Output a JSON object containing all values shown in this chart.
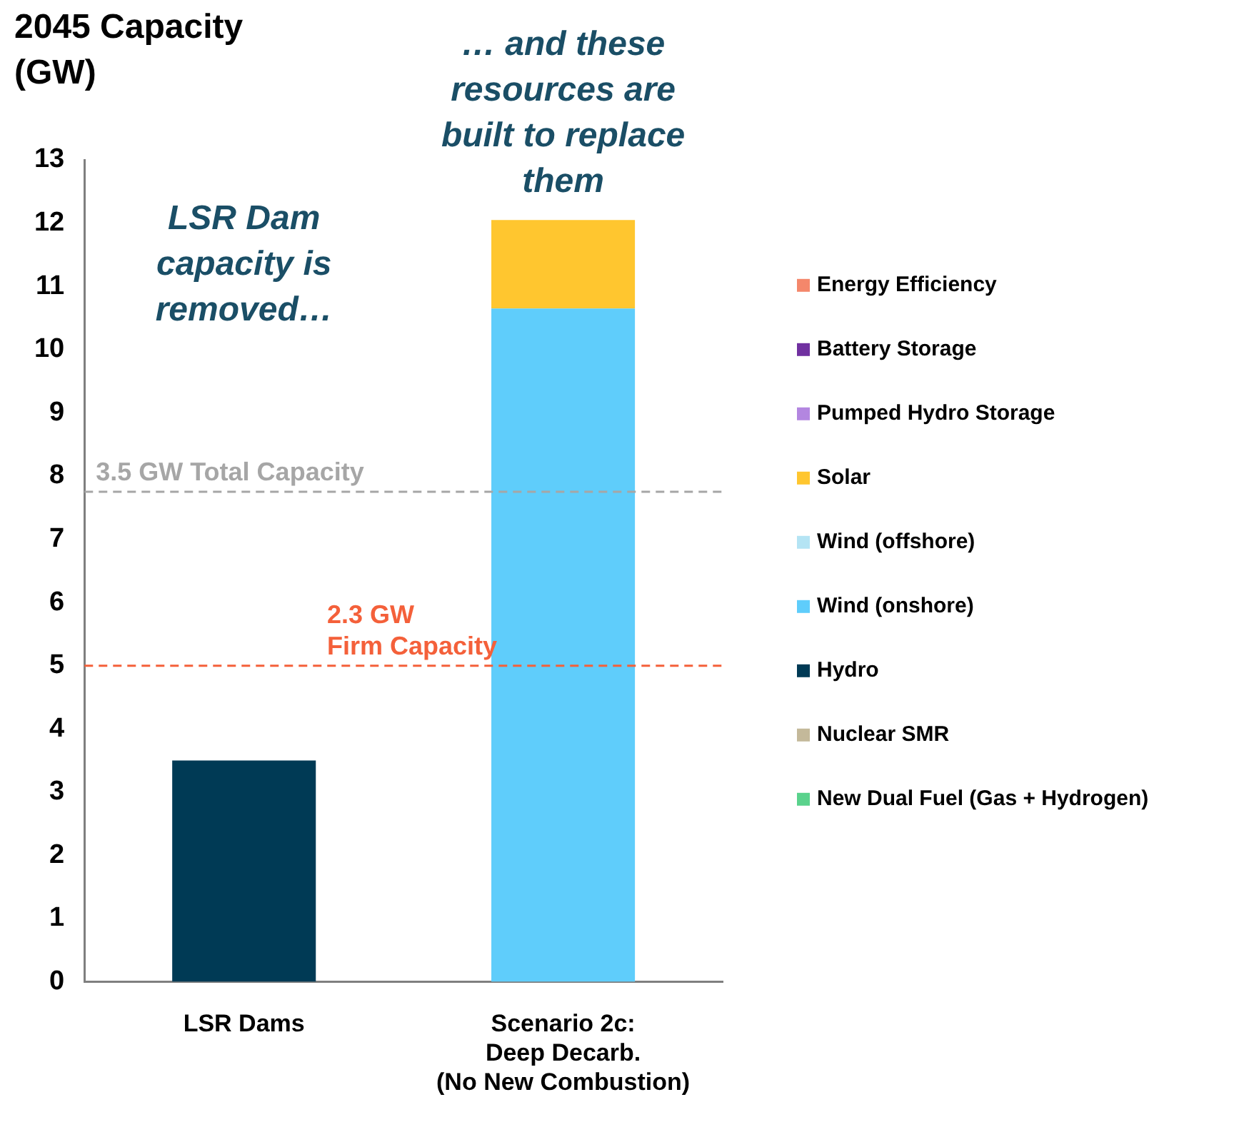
{
  "chart_data": {
    "type": "bar",
    "stacked": true,
    "ylabel": "2045 Capacity (GW)",
    "categories": [
      "LSR Dams",
      "Scenario 2c:\nDeep Decarb.\n(No New Combustion)"
    ],
    "series": [
      {
        "name": "New Dual Fuel (Gas + Hydrogen)",
        "color": "#5ad28c",
        "values": [
          0,
          0
        ]
      },
      {
        "name": "Nuclear SMR",
        "color": "#c4b99a",
        "values": [
          0,
          0
        ]
      },
      {
        "name": "Hydro",
        "color": "#003a55",
        "values": [
          3.5,
          0
        ]
      },
      {
        "name": "Wind (onshore)",
        "color": "#5fcdfb",
        "values": [
          0,
          10.65
        ]
      },
      {
        "name": "Wind (offshore)",
        "color": "#b4e4f4",
        "values": [
          0,
          0
        ]
      },
      {
        "name": "Solar",
        "color": "#ffc62f",
        "values": [
          0,
          1.4
        ]
      },
      {
        "name": "Pumped Hydro Storage",
        "color": "#b386e0",
        "values": [
          0,
          0
        ]
      },
      {
        "name": "Battery Storage",
        "color": "#7030a0",
        "values": [
          0,
          0
        ]
      },
      {
        "name": "Energy Efficiency",
        "color": "#f4876b",
        "values": [
          0,
          0
        ]
      }
    ],
    "ylim": [
      0,
      13
    ],
    "yticks": [
      0,
      1,
      2,
      3,
      4,
      5,
      6,
      7,
      8,
      9,
      10,
      11,
      12,
      13
    ],
    "ref_lines": [
      {
        "axis": "y",
        "value": 7.75,
        "label": "3.5 GW Total Capacity",
        "color": "#a6a6a6",
        "line_style": "dashed"
      },
      {
        "axis": "y",
        "value": 5,
        "label": "2.3 GW\nFirm Capacity",
        "color": "#f4603a",
        "line_style": "dashed"
      }
    ],
    "annotations": [
      "LSR Dam capacity is removed…",
      "… and these resources are built to replace them"
    ],
    "grid": false,
    "legend": "right"
  }
}
